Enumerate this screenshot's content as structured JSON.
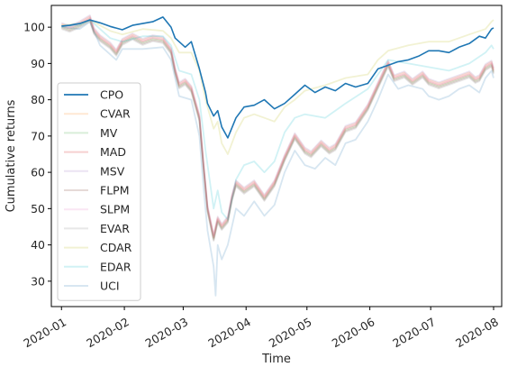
{
  "chart_data": {
    "type": "line",
    "title": "",
    "xlabel": "Time",
    "ylabel": "Cumulative returns",
    "x_ticks": [
      "2020-01",
      "2020-02",
      "2020-03",
      "2020-04",
      "2020-05",
      "2020-06",
      "2020-07",
      "2020-08"
    ],
    "x_range": [
      "2019-12-27",
      "2020-08-05"
    ],
    "ylim": [
      23,
      106
    ],
    "y_ticks": [
      30,
      40,
      50,
      60,
      70,
      80,
      90,
      100
    ],
    "grid": false,
    "legend_position": "center-left",
    "series": [
      {
        "name": "CPO",
        "color": "#1f77b4",
        "opacity": 1.0,
        "points": [
          [
            "2020-01-01",
            100.3
          ],
          [
            "2020-01-05",
            100.5
          ],
          [
            "2020-01-10",
            101.0
          ],
          [
            "2020-01-15",
            102.0
          ],
          [
            "2020-01-20",
            101.2
          ],
          [
            "2020-01-25",
            100.2
          ],
          [
            "2020-01-31",
            99.3
          ],
          [
            "2020-02-05",
            100.5
          ],
          [
            "2020-02-10",
            101.0
          ],
          [
            "2020-02-15",
            101.5
          ],
          [
            "2020-02-20",
            102.8
          ],
          [
            "2020-02-24",
            100.0
          ],
          [
            "2020-02-26",
            97.0
          ],
          [
            "2020-03-02",
            94.5
          ],
          [
            "2020-03-05",
            96.0
          ],
          [
            "2020-03-09",
            88.5
          ],
          [
            "2020-03-12",
            82.0
          ],
          [
            "2020-03-13",
            79.0
          ],
          [
            "2020-03-16",
            75.5
          ],
          [
            "2020-03-18",
            77.0
          ],
          [
            "2020-03-20",
            72.5
          ],
          [
            "2020-03-23",
            69.5
          ],
          [
            "2020-03-27",
            75.0
          ],
          [
            "2020-03-31",
            78.0
          ],
          [
            "2020-04-05",
            78.5
          ],
          [
            "2020-04-10",
            80.0
          ],
          [
            "2020-04-15",
            77.5
          ],
          [
            "2020-04-20",
            79.0
          ],
          [
            "2020-04-25",
            81.5
          ],
          [
            "2020-04-30",
            84.0
          ],
          [
            "2020-05-05",
            82.0
          ],
          [
            "2020-05-10",
            83.5
          ],
          [
            "2020-05-15",
            82.5
          ],
          [
            "2020-05-20",
            84.5
          ],
          [
            "2020-05-25",
            83.5
          ],
          [
            "2020-05-31",
            84.5
          ],
          [
            "2020-06-05",
            88.5
          ],
          [
            "2020-06-10",
            89.5
          ],
          [
            "2020-06-15",
            90.5
          ],
          [
            "2020-06-20",
            91.0
          ],
          [
            "2020-06-25",
            92.0
          ],
          [
            "2020-06-30",
            93.5
          ],
          [
            "2020-07-05",
            93.5
          ],
          [
            "2020-07-10",
            93.0
          ],
          [
            "2020-07-15",
            94.5
          ],
          [
            "2020-07-20",
            95.5
          ],
          [
            "2020-07-25",
            97.5
          ],
          [
            "2020-07-28",
            97.0
          ],
          [
            "2020-07-31",
            99.5
          ],
          [
            "2020-08-01",
            99.8
          ]
        ]
      },
      {
        "name": "CVAR",
        "color": "#ff7f0e",
        "opacity": 0.18,
        "base": "mad",
        "offset": 0.5
      },
      {
        "name": "MV",
        "color": "#2ca02c",
        "opacity": 0.18,
        "base": "mad",
        "offset": -0.3
      },
      {
        "name": "MAD",
        "color": "#d62728",
        "opacity": 0.22,
        "base": "mad",
        "offset": 0.0
      },
      {
        "name": "MSV",
        "color": "#9467bd",
        "opacity": 0.18,
        "base": "mad",
        "offset": 0.8
      },
      {
        "name": "FLPM",
        "color": "#8c564b",
        "opacity": 0.22,
        "base": "mad",
        "offset": -0.6
      },
      {
        "name": "SLPM",
        "color": "#e377c2",
        "opacity": 0.18,
        "base": "mad",
        "offset": 0.3
      },
      {
        "name": "EVAR",
        "color": "#7f7f7f",
        "opacity": 0.18,
        "base": "mad",
        "offset": -0.9
      },
      {
        "name": "CDAR",
        "color": "#bcbd22",
        "opacity": 0.2,
        "base": "cdar",
        "offset": 0.0
      },
      {
        "name": "EDAR",
        "color": "#17becf",
        "opacity": 0.2,
        "base": "edar",
        "offset": 0.0
      },
      {
        "name": "UCI",
        "color": "#1f77b4",
        "opacity": 0.18,
        "base": "uci",
        "offset": 0.0
      }
    ],
    "bases": {
      "mad": [
        [
          "2020-01-01",
          100.4
        ],
        [
          "2020-01-05",
          99.6
        ],
        [
          "2020-01-10",
          100.8
        ],
        [
          "2020-01-15",
          102.5
        ],
        [
          "2020-01-17",
          99.0
        ],
        [
          "2020-01-20",
          97.0
        ],
        [
          "2020-01-25",
          95.0
        ],
        [
          "2020-01-28",
          93.0
        ],
        [
          "2020-01-31",
          96.0
        ],
        [
          "2020-02-05",
          97.5
        ],
        [
          "2020-02-10",
          96.0
        ],
        [
          "2020-02-15",
          97.0
        ],
        [
          "2020-02-20",
          96.5
        ],
        [
          "2020-02-24",
          93.5
        ],
        [
          "2020-02-26",
          88.0
        ],
        [
          "2020-02-28",
          84.0
        ],
        [
          "2020-03-02",
          85.0
        ],
        [
          "2020-03-05",
          83.0
        ],
        [
          "2020-03-09",
          75.0
        ],
        [
          "2020-03-11",
          62.0
        ],
        [
          "2020-03-13",
          50.0
        ],
        [
          "2020-03-16",
          42.0
        ],
        [
          "2020-03-18",
          47.0
        ],
        [
          "2020-03-20",
          45.0
        ],
        [
          "2020-03-23",
          47.0
        ],
        [
          "2020-03-25",
          53.0
        ],
        [
          "2020-03-27",
          57.0
        ],
        [
          "2020-03-31",
          55.0
        ],
        [
          "2020-04-05",
          57.0
        ],
        [
          "2020-04-10",
          53.0
        ],
        [
          "2020-04-15",
          57.0
        ],
        [
          "2020-04-20",
          64.0
        ],
        [
          "2020-04-25",
          70.0
        ],
        [
          "2020-04-30",
          66.0
        ],
        [
          "2020-05-03",
          65.0
        ],
        [
          "2020-05-08",
          68.0
        ],
        [
          "2020-05-12",
          66.0
        ],
        [
          "2020-05-15",
          67.0
        ],
        [
          "2020-05-20",
          72.0
        ],
        [
          "2020-05-25",
          73.0
        ],
        [
          "2020-05-31",
          78.0
        ],
        [
          "2020-06-05",
          84.0
        ],
        [
          "2020-06-10",
          90.0
        ],
        [
          "2020-06-13",
          86.0
        ],
        [
          "2020-06-18",
          87.0
        ],
        [
          "2020-06-22",
          85.0
        ],
        [
          "2020-06-27",
          87.0
        ],
        [
          "2020-06-30",
          85.0
        ],
        [
          "2020-07-05",
          84.0
        ],
        [
          "2020-07-10",
          85.0
        ],
        [
          "2020-07-15",
          86.0
        ],
        [
          "2020-07-20",
          87.0
        ],
        [
          "2020-07-23",
          85.5
        ],
        [
          "2020-07-25",
          86.0
        ],
        [
          "2020-07-28",
          89.0
        ],
        [
          "2020-07-31",
          90.0
        ],
        [
          "2020-08-01",
          88.0
        ]
      ],
      "cdar": [
        [
          "2020-01-01",
          100.5
        ],
        [
          "2020-01-10",
          101.0
        ],
        [
          "2020-01-15",
          102.0
        ],
        [
          "2020-01-25",
          99.0
        ],
        [
          "2020-01-31",
          98.0
        ],
        [
          "2020-02-10",
          99.5
        ],
        [
          "2020-02-20",
          99.0
        ],
        [
          "2020-02-24",
          97.0
        ],
        [
          "2020-02-28",
          93.0
        ],
        [
          "2020-03-05",
          93.0
        ],
        [
          "2020-03-09",
          88.0
        ],
        [
          "2020-03-12",
          80.0
        ],
        [
          "2020-03-16",
          72.0
        ],
        [
          "2020-03-18",
          74.0
        ],
        [
          "2020-03-20",
          68.0
        ],
        [
          "2020-03-23",
          65.0
        ],
        [
          "2020-03-27",
          71.0
        ],
        [
          "2020-03-31",
          75.0
        ],
        [
          "2020-04-05",
          76.0
        ],
        [
          "2020-04-10",
          75.0
        ],
        [
          "2020-04-15",
          74.0
        ],
        [
          "2020-04-20",
          78.0
        ],
        [
          "2020-04-25",
          80.0
        ],
        [
          "2020-04-30",
          82.5
        ],
        [
          "2020-05-10",
          84.0
        ],
        [
          "2020-05-20",
          86.0
        ],
        [
          "2020-05-31",
          87.0
        ],
        [
          "2020-06-05",
          91.0
        ],
        [
          "2020-06-10",
          93.5
        ],
        [
          "2020-06-20",
          95.0
        ],
        [
          "2020-06-30",
          96.0
        ],
        [
          "2020-07-10",
          96.0
        ],
        [
          "2020-07-20",
          98.0
        ],
        [
          "2020-07-28",
          99.5
        ],
        [
          "2020-07-31",
          101.5
        ],
        [
          "2020-08-01",
          102.0
        ]
      ],
      "edar": [
        [
          "2020-01-01",
          100.2
        ],
        [
          "2020-01-10",
          100.5
        ],
        [
          "2020-01-15",
          102.0
        ],
        [
          "2020-01-25",
          97.0
        ],
        [
          "2020-01-31",
          96.0
        ],
        [
          "2020-02-10",
          97.5
        ],
        [
          "2020-02-20",
          97.5
        ],
        [
          "2020-02-24",
          95.0
        ],
        [
          "2020-02-28",
          88.0
        ],
        [
          "2020-03-05",
          87.0
        ],
        [
          "2020-03-09",
          80.0
        ],
        [
          "2020-03-12",
          66.0
        ],
        [
          "2020-03-16",
          50.0
        ],
        [
          "2020-03-18",
          55.0
        ],
        [
          "2020-03-20",
          49.0
        ],
        [
          "2020-03-23",
          47.0
        ],
        [
          "2020-03-27",
          58.0
        ],
        [
          "2020-03-31",
          62.0
        ],
        [
          "2020-04-05",
          63.0
        ],
        [
          "2020-04-10",
          60.0
        ],
        [
          "2020-04-15",
          63.0
        ],
        [
          "2020-04-20",
          71.0
        ],
        [
          "2020-04-25",
          75.0
        ],
        [
          "2020-04-30",
          76.0
        ],
        [
          "2020-05-10",
          75.0
        ],
        [
          "2020-05-20",
          79.0
        ],
        [
          "2020-05-31",
          83.0
        ],
        [
          "2020-06-05",
          87.0
        ],
        [
          "2020-06-10",
          91.0
        ],
        [
          "2020-06-20",
          90.0
        ],
        [
          "2020-06-30",
          89.0
        ],
        [
          "2020-07-10",
          88.0
        ],
        [
          "2020-07-20",
          90.0
        ],
        [
          "2020-07-28",
          93.0
        ],
        [
          "2020-07-31",
          95.0
        ],
        [
          "2020-08-01",
          94.0
        ]
      ],
      "uci": [
        [
          "2020-01-01",
          100.0
        ],
        [
          "2020-01-10",
          99.5
        ],
        [
          "2020-01-15",
          101.5
        ],
        [
          "2020-01-20",
          95.0
        ],
        [
          "2020-01-28",
          91.0
        ],
        [
          "2020-01-31",
          94.0
        ],
        [
          "2020-02-10",
          94.0
        ],
        [
          "2020-02-20",
          94.5
        ],
        [
          "2020-02-24",
          91.0
        ],
        [
          "2020-02-28",
          81.0
        ],
        [
          "2020-03-05",
          80.0
        ],
        [
          "2020-03-09",
          70.0
        ],
        [
          "2020-03-11",
          56.0
        ],
        [
          "2020-03-13",
          44.0
        ],
        [
          "2020-03-16",
          34.0
        ],
        [
          "2020-03-17",
          26.0
        ],
        [
          "2020-03-18",
          40.0
        ],
        [
          "2020-03-20",
          36.0
        ],
        [
          "2020-03-23",
          40.0
        ],
        [
          "2020-03-27",
          50.0
        ],
        [
          "2020-03-31",
          48.0
        ],
        [
          "2020-04-05",
          52.0
        ],
        [
          "2020-04-10",
          48.0
        ],
        [
          "2020-04-15",
          51.0
        ],
        [
          "2020-04-20",
          60.0
        ],
        [
          "2020-04-25",
          66.0
        ],
        [
          "2020-04-30",
          62.0
        ],
        [
          "2020-05-05",
          61.0
        ],
        [
          "2020-05-10",
          64.0
        ],
        [
          "2020-05-15",
          62.0
        ],
        [
          "2020-05-20",
          68.0
        ],
        [
          "2020-05-25",
          69.0
        ],
        [
          "2020-05-31",
          74.0
        ],
        [
          "2020-06-05",
          80.0
        ],
        [
          "2020-06-10",
          87.0
        ],
        [
          "2020-06-15",
          83.0
        ],
        [
          "2020-06-20",
          84.0
        ],
        [
          "2020-06-27",
          83.0
        ],
        [
          "2020-06-30",
          81.0
        ],
        [
          "2020-07-05",
          80.0
        ],
        [
          "2020-07-10",
          81.0
        ],
        [
          "2020-07-15",
          83.0
        ],
        [
          "2020-07-20",
          84.0
        ],
        [
          "2020-07-25",
          82.0
        ],
        [
          "2020-07-28",
          86.0
        ],
        [
          "2020-07-31",
          88.0
        ],
        [
          "2020-08-01",
          86.0
        ]
      ]
    }
  }
}
